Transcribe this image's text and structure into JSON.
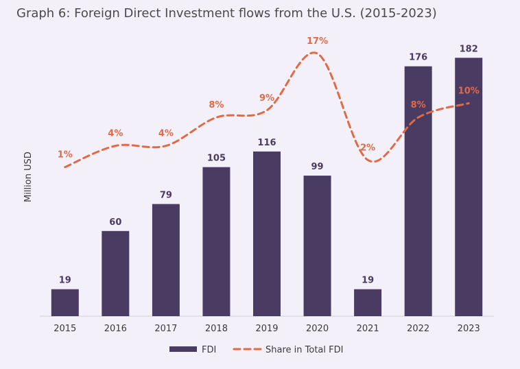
{
  "chart_data": {
    "type": "bar",
    "title": "Graph 6: Foreign Direct Investment flows from the U.S. (2015-2023)",
    "xlabel": "",
    "ylabel": "Million USD",
    "categories": [
      "2015",
      "2016",
      "2017",
      "2018",
      "2019",
      "2020",
      "2021",
      "2022",
      "2023"
    ],
    "ylim": [
      0,
      200
    ],
    "share_ylim": [
      -20,
      20
    ],
    "series": [
      {
        "name": "FDI",
        "type": "bar",
        "color": "#4a3b63",
        "values": [
          19,
          60,
          79,
          105,
          116,
          99,
          19,
          176,
          182
        ],
        "labels": [
          "19",
          "60",
          "79",
          "105",
          "116",
          "99",
          "19",
          "176",
          "182"
        ]
      },
      {
        "name": "Share in Total FDI",
        "type": "line",
        "style": "dashed",
        "color": "#e06a46",
        "values": [
          1,
          4,
          4,
          8,
          9,
          17,
          2,
          8,
          10
        ],
        "labels": [
          "1%",
          "4%",
          "4%",
          "8%",
          "9%",
          "17%",
          "2%",
          "8%",
          "10%"
        ]
      }
    ],
    "legend": {
      "position": "bottom",
      "items": [
        "FDI",
        "Share in Total FDI"
      ]
    },
    "grid": false
  }
}
